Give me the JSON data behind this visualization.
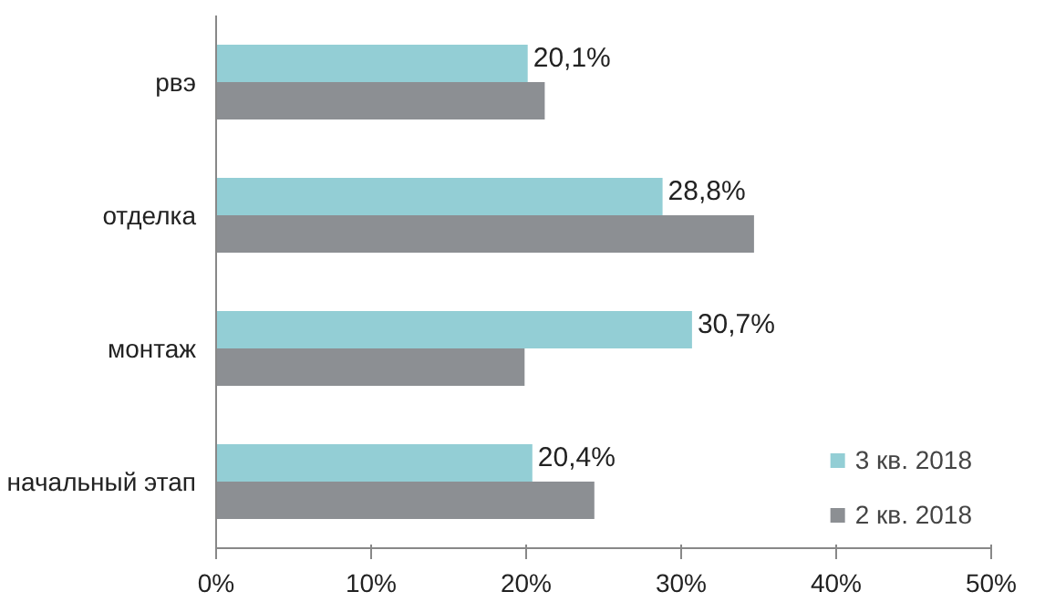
{
  "chart_data": {
    "type": "bar",
    "orientation": "horizontal",
    "categories": [
      "рвэ",
      "отделка",
      "монтаж",
      "начальный этап"
    ],
    "series": [
      {
        "name": "3 кв. 2018",
        "color": "#93ced5",
        "values": [
          20.1,
          28.8,
          30.7,
          20.4
        ],
        "value_labels": [
          "20,1%",
          "28,8%",
          "30,7%",
          "20,4%"
        ]
      },
      {
        "name": "2 кв. 2018",
        "color": "#8c8f93",
        "values": [
          21.2,
          34.7,
          19.9,
          24.4
        ]
      }
    ],
    "xlim": [
      0,
      50
    ],
    "xticks": [
      {
        "value": 0,
        "label": "0%"
      },
      {
        "value": 10,
        "label": "10%"
      },
      {
        "value": 20,
        "label": "20%"
      },
      {
        "value": 30,
        "label": "30%"
      },
      {
        "value": 40,
        "label": "40%"
      },
      {
        "value": 50,
        "label": "50%"
      }
    ],
    "grid": false,
    "legend": "bottom right"
  }
}
